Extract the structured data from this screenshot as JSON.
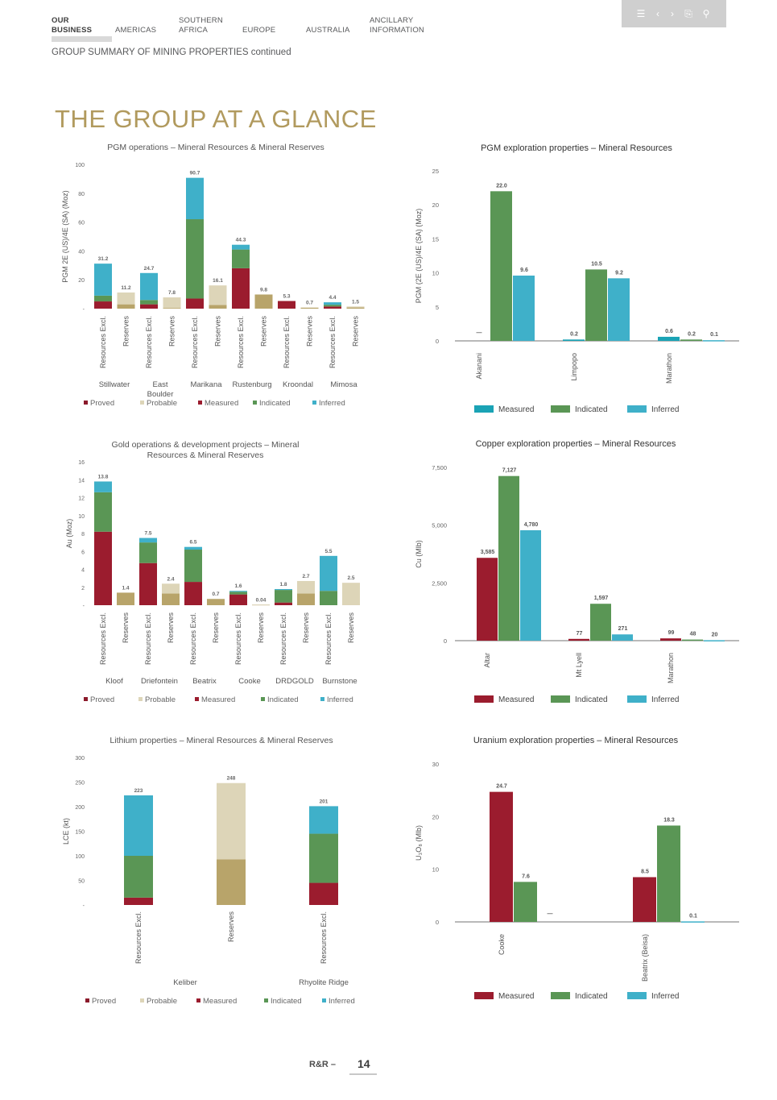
{
  "nav": {
    "items": [
      {
        "line1": "OUR",
        "line2": "BUSINESS",
        "active": true
      },
      {
        "line1": "",
        "line2": "AMERICAS",
        "active": false
      },
      {
        "line1": "SOUTHERN",
        "line2": "AFRICA",
        "active": false
      },
      {
        "line1": "",
        "line2": "EUROPE",
        "active": false
      },
      {
        "line1": "",
        "line2": "AUSTRALIA",
        "active": false
      },
      {
        "line1": "ANCILLARY",
        "line2": "INFORMATION",
        "active": false
      }
    ]
  },
  "toolbar": {
    "icons": [
      "menu-icon",
      "prev-icon",
      "next-icon",
      "export-icon",
      "search-icon"
    ],
    "color": "#cfcfcf"
  },
  "subtitle": "GROUP SUMMARY OF MINING PROPERTIES continued",
  "title": "THE GROUP AT A GLANCE",
  "footer": {
    "label": "R&R –",
    "page": "14"
  },
  "colors": {
    "proved": "#8b1a2b",
    "probable": "#ddd5b8",
    "measured": "#9b1c2e",
    "indicated": "#5a9655",
    "inferred": "#3fb0c9",
    "reserves_dark": "#b8a46a",
    "reserves_light": "#ddd5b8",
    "exp_measured_teal": "#1aa3b5",
    "exp_indicated": "#5a9655",
    "exp_inferred": "#3fb0c9",
    "title_gold": "#b19a5e"
  },
  "chart_data": [
    {
      "id": "pgm_ops",
      "type": "bar",
      "title": "PGM operations – Mineral Resources & Mineral Reserves",
      "ylabel": "PGM 2E (US)/4E (SA) (Moz)",
      "ylim": [
        0,
        100
      ],
      "yticks": [
        "-",
        "20",
        "40",
        "60",
        "80",
        "100"
      ],
      "bars": [
        {
          "label": "Resources Excl.",
          "total": 31.2,
          "total_label": "31.2",
          "kind": "res",
          "segments": [
            5,
            4,
            22.2
          ]
        },
        {
          "label": "Reserves",
          "total": 11.2,
          "total_label": "11.2",
          "kind": "rsv",
          "segments": [
            3,
            8.2
          ]
        },
        {
          "label": "Resources Excl.",
          "total": 24.7,
          "total_label": "24.7",
          "kind": "res",
          "segments": [
            3,
            3,
            18.7
          ]
        },
        {
          "label": "Reserves",
          "total": 7.8,
          "total_label": "7.8",
          "kind": "rsv",
          "segments": [
            0.5,
            7.3
          ]
        },
        {
          "label": "Resources Excl.",
          "total": 90.7,
          "total_label": "90.7",
          "kind": "res",
          "segments": [
            7,
            55,
            28.7
          ]
        },
        {
          "label": "Reserves",
          "total": 16.1,
          "total_label": "16.1",
          "kind": "rsv",
          "segments": [
            2.5,
            13.6
          ]
        },
        {
          "label": "Resources Excl.",
          "total": 44.3,
          "total_label": "44.3",
          "kind": "res",
          "segments": [
            28,
            13,
            3.3
          ]
        },
        {
          "label": "Reserves",
          "total": 9.8,
          "total_label": "9.8",
          "kind": "rsv",
          "segments": [
            9.8,
            0
          ]
        },
        {
          "label": "Resources Excl.",
          "total": 5.3,
          "total_label": "5.3",
          "kind": "res",
          "segments": [
            5.3,
            0,
            0
          ]
        },
        {
          "label": "Reserves",
          "total": 0.7,
          "total_label": "0.7",
          "kind": "rsv",
          "segments": [
            0.7,
            0
          ]
        },
        {
          "label": "Resources Excl.",
          "total": 4.4,
          "total_label": "4.4",
          "kind": "res",
          "segments": [
            1.5,
            1.2,
            1.7
          ]
        },
        {
          "label": "Reserves",
          "total": 1.5,
          "total_label": "1.5",
          "kind": "rsv",
          "segments": [
            0.8,
            0.7
          ]
        }
      ],
      "groups": [
        {
          "name": "Stillwater",
          "name2": ""
        },
        {
          "name": "East",
          "name2": "Boulder"
        },
        {
          "name": "Marikana",
          "name2": ""
        },
        {
          "name": "Rustenburg",
          "name2": ""
        },
        {
          "name": "Kroondal",
          "name2": ""
        },
        {
          "name": "Mimosa",
          "name2": ""
        }
      ],
      "legend": [
        "Proved",
        "Probable",
        "Measured",
        "Indicated",
        "Inferred"
      ]
    },
    {
      "id": "pgm_exp",
      "type": "bar",
      "title": "PGM exploration properties – Mineral Resources",
      "ylabel": "PGM (2E (US)/4E (SA) (Moz)",
      "ylim": [
        0,
        25
      ],
      "yticks": [
        "0",
        "5",
        "10",
        "15",
        "20",
        "25"
      ],
      "categories": [
        "Akanani",
        "Limpopo",
        "Marathon"
      ],
      "series": [
        {
          "name": "Measured",
          "values": [
            0,
            0.2,
            0.6
          ],
          "labels": [
            "—",
            "0.2",
            "0.6"
          ]
        },
        {
          "name": "Indicated",
          "values": [
            22.0,
            10.5,
            0.2
          ],
          "labels": [
            "22.0",
            "10.5",
            "0.2"
          ]
        },
        {
          "name": "Inferred",
          "values": [
            9.6,
            9.2,
            0.1
          ],
          "labels": [
            "9.6",
            "9.2",
            "0.1"
          ]
        }
      ],
      "legend": [
        "Measured",
        "Indicated",
        "Inferred"
      ]
    },
    {
      "id": "gold_ops",
      "type": "bar",
      "title": "Gold operations & development projects – Mineral",
      "title2": "Resources & Mineral Reserves",
      "ylabel": "Au (Moz)",
      "ylim": [
        0,
        16
      ],
      "yticks": [
        "-",
        "2",
        "4",
        "6",
        "8",
        "10",
        "12",
        "14",
        "16"
      ],
      "bars": [
        {
          "label": "Resources Excl.",
          "total": 13.8,
          "total_label": "13.8",
          "kind": "res",
          "segments": [
            8.2,
            4.4,
            1.2
          ]
        },
        {
          "label": "Reserves",
          "total": 1.4,
          "total_label": "1.4",
          "kind": "rsv",
          "segments": [
            1.4,
            0
          ]
        },
        {
          "label": "Resources Excl.",
          "total": 7.5,
          "total_label": "7.5",
          "kind": "res",
          "segments": [
            4.7,
            2.3,
            0.5
          ]
        },
        {
          "label": "Reserves",
          "total": 2.4,
          "total_label": "2.4",
          "kind": "rsv",
          "segments": [
            1.3,
            1.1
          ]
        },
        {
          "label": "Resources Excl.",
          "total": 6.5,
          "total_label": "6.5",
          "kind": "res",
          "segments": [
            2.6,
            3.6,
            0.3
          ]
        },
        {
          "label": "Reserves",
          "total": 0.7,
          "total_label": "0.7",
          "kind": "rsv",
          "segments": [
            0.7,
            0
          ]
        },
        {
          "label": "Resources Excl.",
          "total": 1.6,
          "total_label": "1.6",
          "kind": "res",
          "segments": [
            1.2,
            0.3,
            0.1
          ]
        },
        {
          "label": "Reserves",
          "total": 0.04,
          "total_label": "0.04",
          "kind": "rsv",
          "segments": [
            0.04,
            0
          ]
        },
        {
          "label": "Resources Excl.",
          "total": 1.8,
          "total_label": "1.8",
          "kind": "res",
          "segments": [
            0.3,
            1.4,
            0.1
          ]
        },
        {
          "label": "Reserves",
          "total": 2.7,
          "total_label": "2.7",
          "kind": "rsv",
          "segments": [
            1.3,
            1.4
          ]
        },
        {
          "label": "Resources Excl.",
          "total": 5.5,
          "total_label": "5.5",
          "kind": "res",
          "segments": [
            0,
            1.6,
            3.9
          ]
        },
        {
          "label": "Reserves",
          "total": 2.5,
          "total_label": "2.5",
          "kind": "rsv",
          "segments": [
            0,
            2.5
          ]
        }
      ],
      "groups": [
        {
          "name": "Kloof",
          "name2": ""
        },
        {
          "name": "Driefontein",
          "name2": ""
        },
        {
          "name": "Beatrix",
          "name2": ""
        },
        {
          "name": "Cooke",
          "name2": ""
        },
        {
          "name": "DRDGOLD",
          "name2": ""
        },
        {
          "name": "Burnstone",
          "name2": ""
        }
      ],
      "legend": [
        "Proved",
        "Probable",
        "Measured",
        "Indicated",
        "Inferred"
      ]
    },
    {
      "id": "copper_exp",
      "type": "bar",
      "title": "Copper exploration properties – Mineral Resources",
      "ylabel": "Cu (Mlb)",
      "ylim": [
        0,
        7500
      ],
      "yticks": [
        "0",
        "2,500",
        "5,000",
        "7,500"
      ],
      "categories": [
        "Altar",
        "Mt Lyell",
        "Marathon"
      ],
      "series": [
        {
          "name": "Measured",
          "values": [
            3585,
            77,
            99
          ],
          "labels": [
            "3,585",
            "77",
            "99"
          ]
        },
        {
          "name": "Indicated",
          "values": [
            7127,
            1597,
            48
          ],
          "labels": [
            "7,127",
            "1,597",
            "48"
          ]
        },
        {
          "name": "Inferred",
          "values": [
            4780,
            271,
            20
          ],
          "labels": [
            "4,780",
            "271",
            "20"
          ]
        }
      ],
      "legend": [
        "Measured",
        "Indicated",
        "Inferred"
      ]
    },
    {
      "id": "lithium",
      "type": "bar",
      "title": "Lithium properties – Mineral Resources & Mineral Reserves",
      "ylabel": "LCE (kt)",
      "ylim": [
        0,
        300
      ],
      "yticks": [
        "-",
        "50",
        "100",
        "150",
        "200",
        "250",
        "300"
      ],
      "bars": [
        {
          "label": "Resources Excl.",
          "total": 223,
          "total_label": "223",
          "kind": "res",
          "segments": [
            15,
            85,
            123
          ]
        },
        {
          "label": "Reserves",
          "total": 248,
          "total_label": "248",
          "kind": "rsv",
          "segments": [
            93,
            155
          ]
        },
        {
          "label": "Resources Excl.",
          "total": 201,
          "total_label": "201",
          "kind": "res",
          "segments": [
            45,
            100,
            56
          ]
        }
      ],
      "groups": [
        {
          "name": "Keliber",
          "name2": ""
        },
        {
          "name": "Rhyolite Ridge",
          "name2": ""
        }
      ],
      "legend": [
        "Proved",
        "Probable",
        "Measured",
        "Indicated",
        "Inferred"
      ]
    },
    {
      "id": "uranium_exp",
      "type": "bar",
      "title": "Uranium exploration properties – Mineral Resources",
      "ylabel": "U₃O₈ (Mlb)",
      "ylim": [
        0,
        30
      ],
      "yticks": [
        "0",
        "10",
        "20",
        "30"
      ],
      "categories": [
        "Cooke",
        "Beatrix (Beisa)"
      ],
      "series": [
        {
          "name": "Measured",
          "values": [
            24.7,
            8.5
          ],
          "labels": [
            "24.7",
            "8.5"
          ]
        },
        {
          "name": "Indicated",
          "values": [
            7.6,
            18.3
          ],
          "labels": [
            "7.6",
            "18.3"
          ]
        },
        {
          "name": "Inferred",
          "values": [
            0,
            0.1
          ],
          "labels": [
            "—",
            "0.1"
          ]
        }
      ],
      "legend": [
        "Measured",
        "Indicated",
        "Inferred"
      ]
    }
  ]
}
